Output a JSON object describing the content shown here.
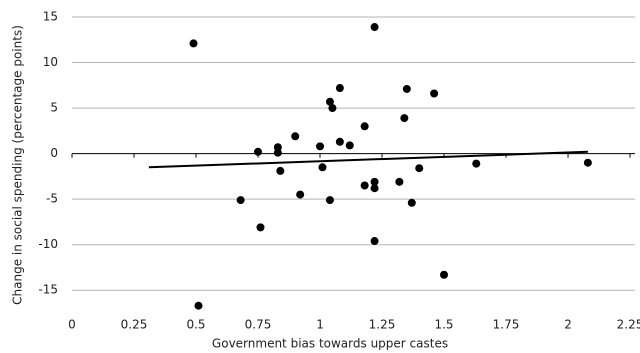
{
  "chart_data": {
    "type": "scatter",
    "xlabel": "Government bias towards upper castes",
    "ylabel": "Change in social spending (percentage points)",
    "x": [
      0.49,
      0.51,
      0.68,
      0.75,
      0.76,
      0.83,
      0.83,
      0.84,
      0.9,
      0.92,
      1.0,
      1.01,
      1.04,
      1.05,
      1.04,
      1.08,
      1.08,
      1.12,
      1.18,
      1.18,
      1.22,
      1.22,
      1.22,
      1.22,
      1.32,
      1.34,
      1.35,
      1.37,
      1.4,
      1.46,
      1.5,
      1.63,
      2.08
    ],
    "values": [
      12.1,
      -16.7,
      -5.1,
      0.2,
      -8.1,
      0.7,
      0.1,
      -1.9,
      1.9,
      -4.5,
      0.8,
      -1.5,
      5.7,
      5.0,
      -5.1,
      7.2,
      1.3,
      0.9,
      -3.5,
      3.0,
      -3.1,
      -3.8,
      -9.6,
      13.9,
      -3.1,
      3.9,
      7.1,
      -5.4,
      -1.6,
      6.6,
      -13.3,
      -1.1,
      -1.0
    ],
    "color": "#000000",
    "trendline": {
      "x": [
        0.31,
        2.08
      ],
      "values": [
        -1.5,
        0.2
      ]
    },
    "xlim": [
      0,
      2.27
    ],
    "xticks": [
      0,
      0.25,
      0.5,
      0.75,
      1,
      1.25,
      1.5,
      1.75,
      2,
      2.25
    ],
    "ylim": [
      -17.5,
      15
    ],
    "yticks": [
      -15,
      -10,
      -5,
      0,
      5,
      10,
      15
    ],
    "grid": true
  }
}
